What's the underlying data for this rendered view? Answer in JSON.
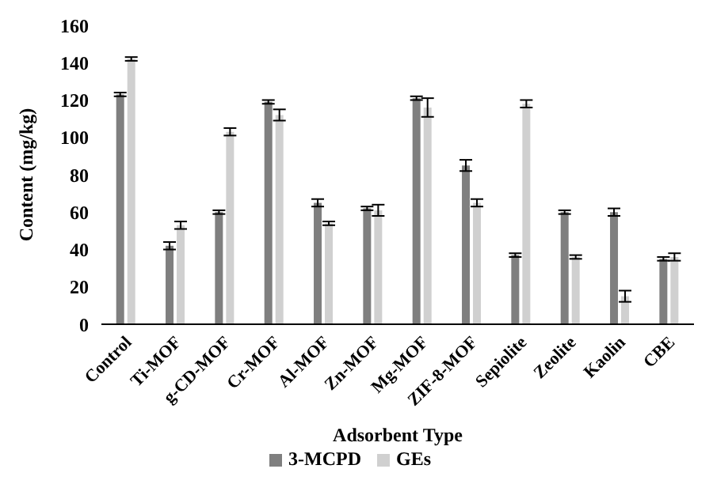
{
  "chart_data": {
    "type": "bar",
    "xlabel": "Adsorbent Type",
    "ylabel": "Content (mg/kg)",
    "categories": [
      "Control",
      "Ti-MOF",
      "g-CD-MOF",
      "Cr-MOF",
      "Al-MOF",
      "Zn-MOF",
      "Mg-MOF",
      "ZIF-8-MOF",
      "Sepiolite",
      "Zeolite",
      "Kaolin",
      "CBE"
    ],
    "series": [
      {
        "name": "3-MCPD",
        "color": "#7f7f7f",
        "values": [
          123,
          42,
          60,
          119,
          65,
          62,
          121,
          85,
          37,
          60,
          60,
          35
        ],
        "errors": [
          1,
          2,
          1,
          1,
          2,
          1,
          1,
          3,
          1,
          1,
          2,
          1
        ]
      },
      {
        "name": "GEs",
        "color": "#d0d0d0",
        "values": [
          142,
          53,
          103,
          112,
          54,
          61,
          116,
          65,
          118,
          36,
          15,
          36
        ],
        "errors": [
          1,
          2,
          2,
          3,
          1,
          3,
          5,
          2,
          2,
          1,
          3,
          2
        ]
      }
    ],
    "ylim": [
      0,
      160
    ],
    "yticks": [
      0,
      20,
      40,
      60,
      80,
      100,
      120,
      140,
      160
    ],
    "grid": false,
    "legend": "bottom"
  }
}
